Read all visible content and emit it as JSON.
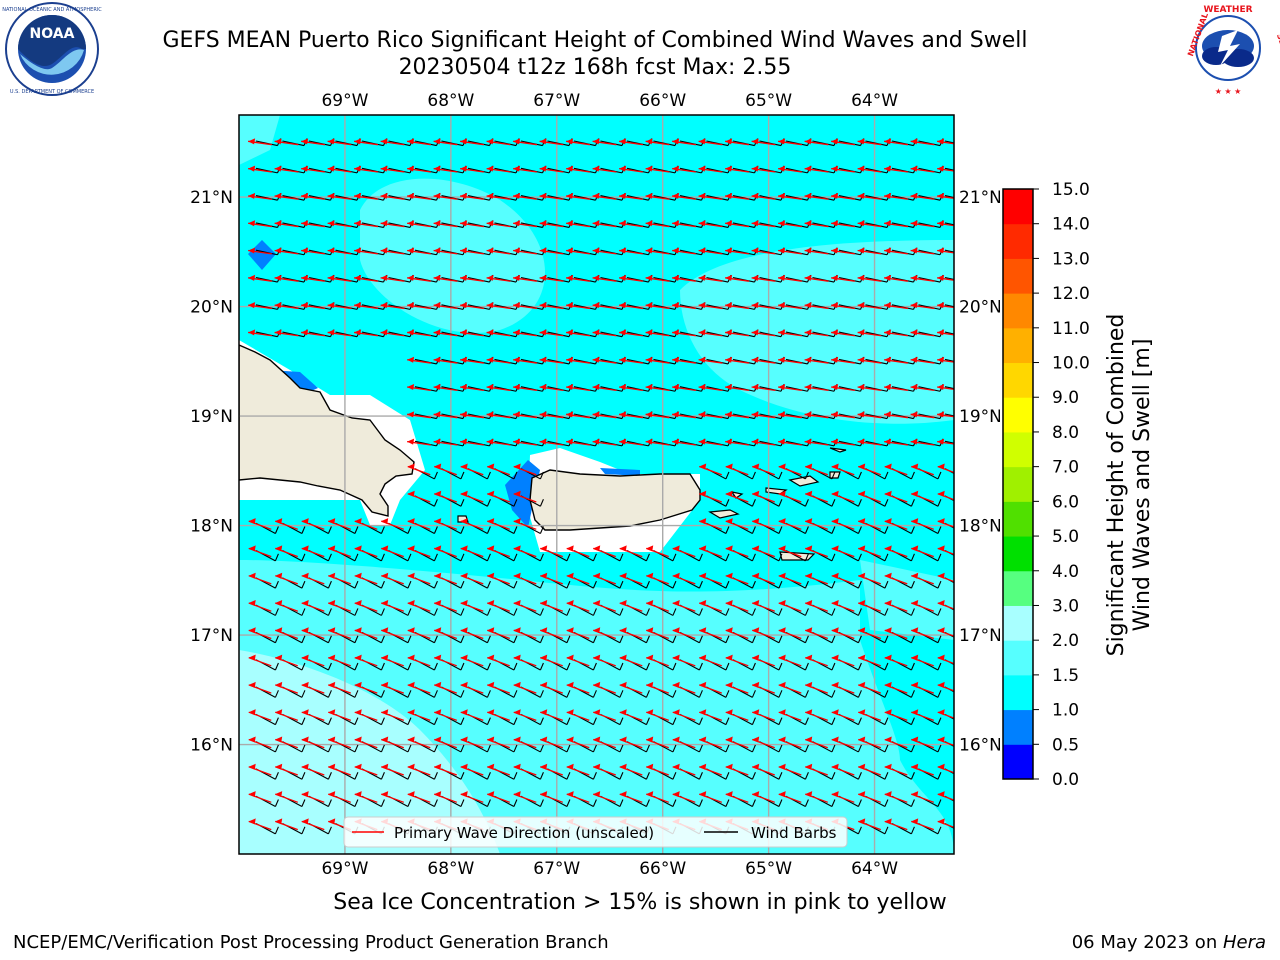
{
  "header": {
    "title_line1": "GEFS MEAN Puerto Rico Significant Height of Combined Wind Waves and Swell",
    "title_line2": "20230504 t12z 168h fcst   Max: 2.55"
  },
  "logos": {
    "left": {
      "icon": "noaa-logo",
      "text": "NOAA",
      "ring_text": "NATIONAL OCEANIC AND ATMOSPHERIC ADMINISTRATION · U.S. DEPARTMENT OF COMMERCE"
    },
    "right": {
      "icon": "nws-logo",
      "ring_text": "NATIONAL WEATHER SERVICE"
    }
  },
  "map": {
    "lon_ticks": [
      "69°W",
      "68°W",
      "67°W",
      "66°W",
      "65°W",
      "64°W"
    ],
    "lat_ticks": [
      "21°N",
      "20°N",
      "19°N",
      "18°N",
      "17°N",
      "16°N"
    ],
    "lat_ticks_right": [
      "21°N",
      "20°N",
      "19°N",
      "18°N",
      "17°N",
      "16°N"
    ],
    "extent": {
      "lon_min": -70.0,
      "lon_max": -63.25,
      "lat_min": 15.0,
      "lat_max": 21.75
    },
    "colors": {
      "land": "#efebdb",
      "sea_mid": "#00ffff",
      "sea_light": "#56ffff",
      "sea_lighter": "#a8ffff",
      "sea_shallow": "#0080ff"
    },
    "legend": {
      "wave_direction": "Primary Wave Direction (unscaled)",
      "wind_barbs": "Wind Barbs"
    }
  },
  "colorbar": {
    "label_line1": "Significant Height of Combined",
    "label_line2": "Wind Waves and Swell [m]",
    "ticks": [
      "15.0",
      "14.0",
      "13.0",
      "12.0",
      "11.0",
      "10.0",
      "9.0",
      "8.0",
      "7.0",
      "6.0",
      "5.0",
      "4.0",
      "3.0",
      "2.0",
      "1.5",
      "1.0",
      "0.5",
      "0.0"
    ],
    "colors": [
      "#0000ff",
      "#0080ff",
      "#00ffff",
      "#56ffff",
      "#a8ffff",
      "#56ff80",
      "#00e000",
      "#50e000",
      "#a0f000",
      "#d0ff00",
      "#ffff00",
      "#ffd700",
      "#ffb000",
      "#ff8800",
      "#ff5500",
      "#ff2a00",
      "#ff0000"
    ]
  },
  "subtitle": "Sea Ice Concentration > 15% is shown in pink to yellow",
  "footer": {
    "left": "NCEP/EMC/Verification Post Processing Product Generation Branch",
    "date": "06 May 2023 on ",
    "host": "Hera"
  }
}
